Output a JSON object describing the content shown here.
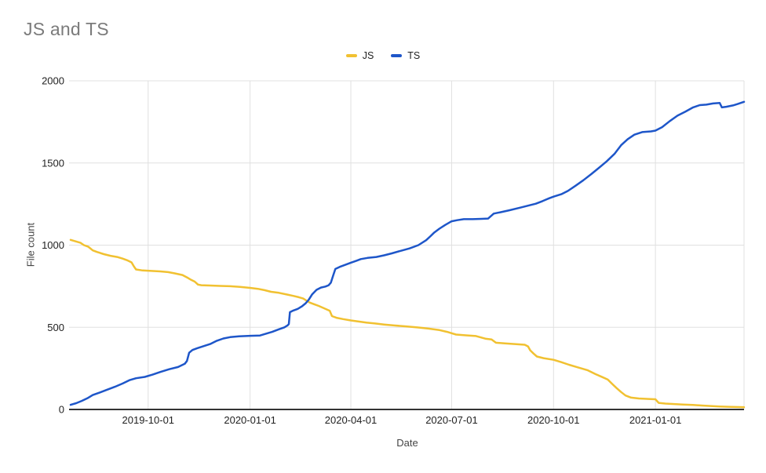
{
  "title": "JS and TS",
  "colors": {
    "js_series": "#F1C131",
    "ts_series": "#1E56C9",
    "gridline": "#e0e0e0",
    "axis_line": "#333333",
    "title_text": "#7b7b7b",
    "tick_text": "#222222",
    "axis_title_text": "#444444"
  },
  "chart_data": {
    "type": "line",
    "title": "JS and TS",
    "xlabel": "Date",
    "ylabel": "File count",
    "grid": true,
    "legend_position": "top-center",
    "ylim": [
      0,
      2000
    ],
    "y_ticks": [
      0,
      500,
      1000,
      1500,
      2000
    ],
    "x_ticks": [
      "2019-10-01",
      "2020-01-01",
      "2020-04-01",
      "2020-07-01",
      "2020-10-01",
      "2021-01-01"
    ],
    "x_range": [
      "2019-07-23",
      "2021-03-22"
    ],
    "series": [
      {
        "name": "JS",
        "color": "#F1C131",
        "points": [
          [
            "2019-07-23",
            1032
          ],
          [
            "2019-07-26",
            1026
          ],
          [
            "2019-08-01",
            1014
          ],
          [
            "2019-08-04",
            1000
          ],
          [
            "2019-08-08",
            990
          ],
          [
            "2019-08-12",
            968
          ],
          [
            "2019-08-16",
            958
          ],
          [
            "2019-08-22",
            945
          ],
          [
            "2019-08-28",
            935
          ],
          [
            "2019-09-03",
            928
          ],
          [
            "2019-09-08",
            918
          ],
          [
            "2019-09-12",
            908
          ],
          [
            "2019-09-16",
            895
          ],
          [
            "2019-09-18",
            872
          ],
          [
            "2019-09-20",
            852
          ],
          [
            "2019-09-26",
            846
          ],
          [
            "2019-10-04",
            843
          ],
          [
            "2019-10-12",
            840
          ],
          [
            "2019-10-19",
            836
          ],
          [
            "2019-10-25",
            828
          ],
          [
            "2019-11-01",
            818
          ],
          [
            "2019-11-06",
            800
          ],
          [
            "2019-11-09",
            788
          ],
          [
            "2019-11-12",
            778
          ],
          [
            "2019-11-15",
            760
          ],
          [
            "2019-11-18",
            756
          ],
          [
            "2019-11-26",
            754
          ],
          [
            "2019-12-05",
            752
          ],
          [
            "2019-12-14",
            750
          ],
          [
            "2019-12-23",
            746
          ],
          [
            "2020-01-01",
            740
          ],
          [
            "2020-01-08",
            734
          ],
          [
            "2020-01-14",
            726
          ],
          [
            "2020-01-20",
            716
          ],
          [
            "2020-01-27",
            710
          ],
          [
            "2020-02-03",
            700
          ],
          [
            "2020-02-09",
            691
          ],
          [
            "2020-02-14",
            683
          ],
          [
            "2020-02-18",
            675
          ],
          [
            "2020-02-21",
            662
          ],
          [
            "2020-02-24",
            650
          ],
          [
            "2020-02-28",
            640
          ],
          [
            "2020-03-03",
            630
          ],
          [
            "2020-03-07",
            618
          ],
          [
            "2020-03-11",
            606
          ],
          [
            "2020-03-13",
            600
          ],
          [
            "2020-03-15",
            568
          ],
          [
            "2020-03-19",
            558
          ],
          [
            "2020-03-25",
            550
          ],
          [
            "2020-04-01",
            542
          ],
          [
            "2020-04-08",
            535
          ],
          [
            "2020-04-15",
            529
          ],
          [
            "2020-04-23",
            523
          ],
          [
            "2020-05-01",
            517
          ],
          [
            "2020-05-10",
            511
          ],
          [
            "2020-05-20",
            506
          ],
          [
            "2020-06-01",
            499
          ],
          [
            "2020-06-10",
            492
          ],
          [
            "2020-06-20",
            483
          ],
          [
            "2020-06-27",
            472
          ],
          [
            "2020-07-01",
            464
          ],
          [
            "2020-07-05",
            456
          ],
          [
            "2020-07-14",
            451
          ],
          [
            "2020-07-23",
            447
          ],
          [
            "2020-08-01",
            430
          ],
          [
            "2020-08-06",
            426
          ],
          [
            "2020-08-10",
            406
          ],
          [
            "2020-08-18",
            402
          ],
          [
            "2020-08-27",
            398
          ],
          [
            "2020-09-05",
            394
          ],
          [
            "2020-09-08",
            384
          ],
          [
            "2020-09-10",
            360
          ],
          [
            "2020-09-13",
            340
          ],
          [
            "2020-09-16",
            322
          ],
          [
            "2020-09-22",
            312
          ],
          [
            "2020-10-01",
            302
          ],
          [
            "2020-10-08",
            288
          ],
          [
            "2020-10-15",
            272
          ],
          [
            "2020-10-22",
            258
          ],
          [
            "2020-11-01",
            238
          ],
          [
            "2020-11-08",
            215
          ],
          [
            "2020-11-14",
            197
          ],
          [
            "2020-11-19",
            182
          ],
          [
            "2020-11-23",
            155
          ],
          [
            "2020-11-27",
            130
          ],
          [
            "2020-12-01",
            106
          ],
          [
            "2020-12-05",
            85
          ],
          [
            "2020-12-10",
            72
          ],
          [
            "2020-12-17",
            67
          ],
          [
            "2020-12-26",
            64
          ],
          [
            "2021-01-01",
            62
          ],
          [
            "2021-01-04",
            40
          ],
          [
            "2021-01-10",
            36
          ],
          [
            "2021-01-18",
            33
          ],
          [
            "2021-01-26",
            30
          ],
          [
            "2021-02-04",
            27
          ],
          [
            "2021-02-12",
            24
          ],
          [
            "2021-02-20",
            21
          ],
          [
            "2021-02-28",
            18
          ],
          [
            "2021-03-08",
            16
          ],
          [
            "2021-03-15",
            15
          ],
          [
            "2021-03-22",
            14
          ]
        ]
      },
      {
        "name": "TS",
        "color": "#1E56C9",
        "points": [
          [
            "2019-07-23",
            28
          ],
          [
            "2019-07-28",
            38
          ],
          [
            "2019-08-02",
            52
          ],
          [
            "2019-08-07",
            68
          ],
          [
            "2019-08-12",
            88
          ],
          [
            "2019-08-18",
            102
          ],
          [
            "2019-08-24",
            118
          ],
          [
            "2019-09-01",
            138
          ],
          [
            "2019-09-08",
            158
          ],
          [
            "2019-09-14",
            178
          ],
          [
            "2019-09-20",
            190
          ],
          [
            "2019-09-28",
            198
          ],
          [
            "2019-10-05",
            212
          ],
          [
            "2019-10-12",
            228
          ],
          [
            "2019-10-20",
            245
          ],
          [
            "2019-10-28",
            258
          ],
          [
            "2019-11-03",
            278
          ],
          [
            "2019-11-05",
            295
          ],
          [
            "2019-11-07",
            345
          ],
          [
            "2019-11-10",
            362
          ],
          [
            "2019-11-14",
            372
          ],
          [
            "2019-11-20",
            385
          ],
          [
            "2019-11-26",
            398
          ],
          [
            "2019-12-02",
            418
          ],
          [
            "2019-12-08",
            432
          ],
          [
            "2019-12-14",
            440
          ],
          [
            "2019-12-22",
            445
          ],
          [
            "2020-01-01",
            448
          ],
          [
            "2020-01-10",
            450
          ],
          [
            "2020-01-15",
            460
          ],
          [
            "2020-01-21",
            472
          ],
          [
            "2020-01-27",
            488
          ],
          [
            "2020-02-01",
            500
          ],
          [
            "2020-02-04",
            512
          ],
          [
            "2020-02-05",
            520
          ],
          [
            "2020-02-06",
            592
          ],
          [
            "2020-02-09",
            602
          ],
          [
            "2020-02-13",
            612
          ],
          [
            "2020-02-17",
            628
          ],
          [
            "2020-02-20",
            645
          ],
          [
            "2020-02-23",
            668
          ],
          [
            "2020-02-26",
            700
          ],
          [
            "2020-03-01",
            728
          ],
          [
            "2020-03-05",
            742
          ],
          [
            "2020-03-09",
            748
          ],
          [
            "2020-03-12",
            756
          ],
          [
            "2020-03-14",
            772
          ],
          [
            "2020-03-16",
            815
          ],
          [
            "2020-03-18",
            855
          ],
          [
            "2020-03-22",
            868
          ],
          [
            "2020-03-27",
            880
          ],
          [
            "2020-04-01",
            893
          ],
          [
            "2020-04-06",
            905
          ],
          [
            "2020-04-10",
            915
          ],
          [
            "2020-04-16",
            922
          ],
          [
            "2020-04-24",
            928
          ],
          [
            "2020-05-01",
            938
          ],
          [
            "2020-05-08",
            950
          ],
          [
            "2020-05-16",
            965
          ],
          [
            "2020-05-24",
            980
          ],
          [
            "2020-06-01",
            1000
          ],
          [
            "2020-06-08",
            1030
          ],
          [
            "2020-06-12",
            1055
          ],
          [
            "2020-06-15",
            1075
          ],
          [
            "2020-06-20",
            1100
          ],
          [
            "2020-06-25",
            1122
          ],
          [
            "2020-07-01",
            1145
          ],
          [
            "2020-07-06",
            1152
          ],
          [
            "2020-07-12",
            1158
          ],
          [
            "2020-07-20",
            1158
          ],
          [
            "2020-07-28",
            1160
          ],
          [
            "2020-08-03",
            1162
          ],
          [
            "2020-08-08",
            1192
          ],
          [
            "2020-08-14",
            1200
          ],
          [
            "2020-08-22",
            1212
          ],
          [
            "2020-09-01",
            1228
          ],
          [
            "2020-09-08",
            1240
          ],
          [
            "2020-09-15",
            1252
          ],
          [
            "2020-09-21",
            1268
          ],
          [
            "2020-09-27",
            1285
          ],
          [
            "2020-10-01",
            1295
          ],
          [
            "2020-10-08",
            1310
          ],
          [
            "2020-10-14",
            1330
          ],
          [
            "2020-10-21",
            1362
          ],
          [
            "2020-10-28",
            1395
          ],
          [
            "2020-11-04",
            1432
          ],
          [
            "2020-11-11",
            1470
          ],
          [
            "2020-11-18",
            1510
          ],
          [
            "2020-11-25",
            1555
          ],
          [
            "2020-12-01",
            1608
          ],
          [
            "2020-12-07",
            1645
          ],
          [
            "2020-12-13",
            1672
          ],
          [
            "2020-12-20",
            1688
          ],
          [
            "2020-12-28",
            1692
          ],
          [
            "2021-01-01",
            1697
          ],
          [
            "2021-01-07",
            1718
          ],
          [
            "2021-01-14",
            1755
          ],
          [
            "2021-01-21",
            1788
          ],
          [
            "2021-01-28",
            1812
          ],
          [
            "2021-02-04",
            1838
          ],
          [
            "2021-02-10",
            1852
          ],
          [
            "2021-02-16",
            1855
          ],
          [
            "2021-02-22",
            1862
          ],
          [
            "2021-02-28",
            1865
          ],
          [
            "2021-03-02",
            1838
          ],
          [
            "2021-03-06",
            1842
          ],
          [
            "2021-03-12",
            1850
          ],
          [
            "2021-03-16",
            1858
          ],
          [
            "2021-03-22",
            1872
          ]
        ]
      }
    ]
  }
}
